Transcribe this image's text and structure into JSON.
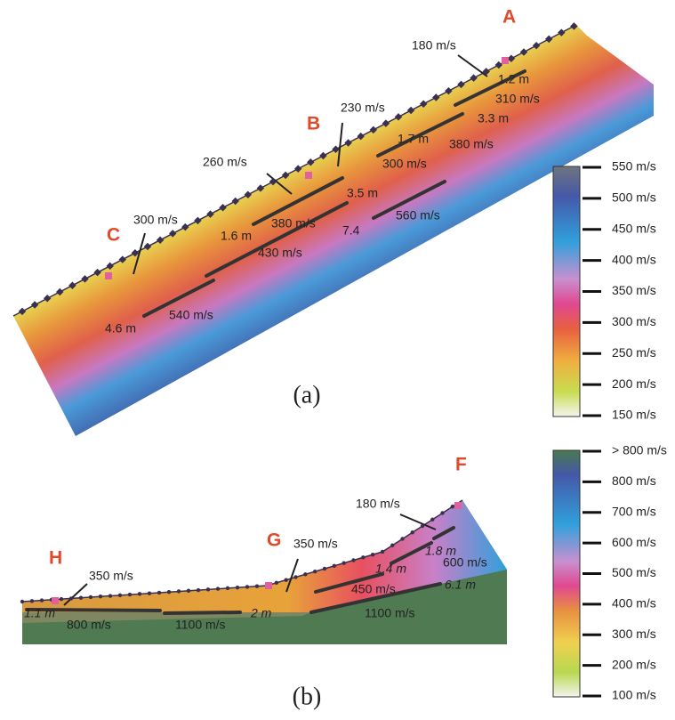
{
  "panel_a": {
    "caption": "(a)",
    "points": [
      "A",
      "B",
      "C"
    ],
    "labels": [
      "180 m/s",
      "1.2 m",
      "310 m/s",
      "3.3 m",
      "230 m/s",
      "1.7 m",
      "380 m/s",
      "300 m/s",
      "260 m/s",
      "3.5 m",
      "380 m/s",
      "1.6 m",
      "560 m/s",
      "7.4",
      "300 m/s",
      "430 m/s",
      "540 m/s",
      "4.6 m"
    ],
    "colorbar": [
      "550 m/s",
      "500 m/s",
      "450 m/s",
      "400 m/s",
      "350 m/s",
      "300 m/s",
      "250 m/s",
      "200 m/s",
      "150 m/s"
    ]
  },
  "panel_b": {
    "caption": "(b)",
    "points": [
      "F",
      "G",
      "H"
    ],
    "labels": [
      "180 m/s",
      "1.8 m",
      "350 m/s",
      "1.4 m",
      "600 m/s",
      "450 m/s",
      "6.1 m",
      "350 m/s",
      "1.1 m",
      "800 m/s",
      "1100 m/s",
      "2 m",
      "1100 m/s"
    ],
    "colorbar": [
      "> 800 m/s",
      "800 m/s",
      "700 m/s",
      "600 m/s",
      "500 m/s",
      "400 m/s",
      "300 m/s",
      "200 m/s",
      "100 m/s"
    ]
  }
}
